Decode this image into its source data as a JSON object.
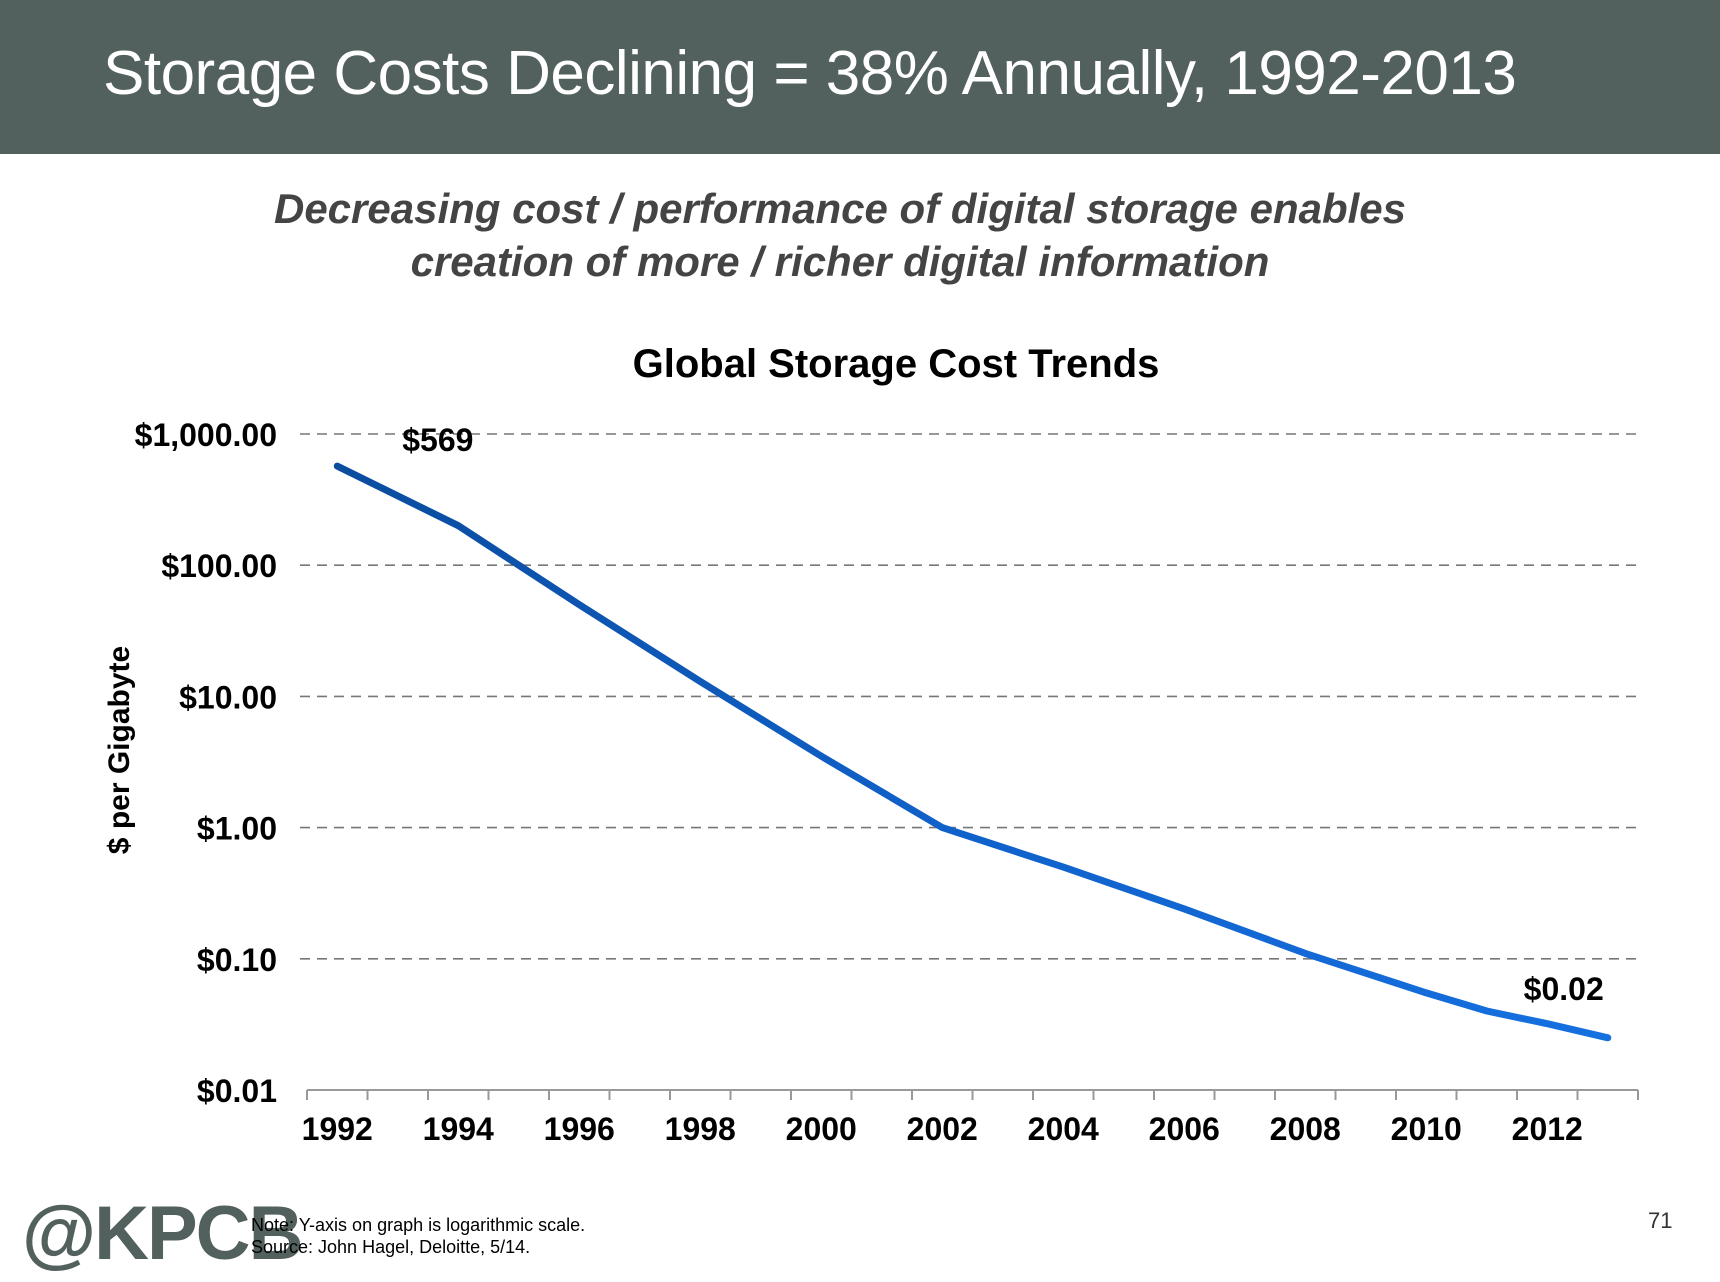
{
  "header": {
    "title": "Storage Costs Declining = 38% Annually, 1992-2013"
  },
  "subtitle": {
    "line1": "Decreasing cost / performance of digital storage enables",
    "line2": "creation of more / richer digital information"
  },
  "chart_data": {
    "type": "line",
    "title": "Global Storage Cost Trends",
    "ylabel": "$ per Gigabyte",
    "xlabel": "",
    "y_scale": "log",
    "ylim": [
      0.01,
      1000
    ],
    "xlim": [
      1991.5,
      2013.5
    ],
    "y_ticks": [
      {
        "value": 1000,
        "label": "$1,000.00"
      },
      {
        "value": 100,
        "label": "$100.00"
      },
      {
        "value": 10,
        "label": "$10.00"
      },
      {
        "value": 1,
        "label": "$1.00"
      },
      {
        "value": 0.1,
        "label": "$0.10"
      },
      {
        "value": 0.01,
        "label": "$0.01"
      }
    ],
    "x_ticks": [
      "1992",
      "1994",
      "1996",
      "1998",
      "2000",
      "2002",
      "2004",
      "2006",
      "2008",
      "2010",
      "2012"
    ],
    "grid": "horizontal dashed",
    "legend": "none",
    "series": [
      {
        "color": "#1060c8",
        "x": [
          1992,
          1994,
          1996,
          1998,
          2000,
          2002,
          2004,
          2006,
          2008,
          2010,
          2011,
          2012,
          2013
        ],
        "values": [
          569,
          200,
          50,
          13,
          3.5,
          1.0,
          0.5,
          0.24,
          0.11,
          0.055,
          0.04,
          0.032,
          0.025
        ]
      }
    ],
    "annotations": [
      {
        "text": "$569",
        "x": 1992,
        "value": 569
      },
      {
        "text": "$0.02",
        "x": 2013,
        "value": 0.025
      }
    ]
  },
  "footer": {
    "logo": "@KPCB",
    "note": "Note: Y-axis on graph is logarithmic scale.",
    "source": "Source: John Hagel, Deloitte, 5/14.",
    "page_number": "71"
  }
}
